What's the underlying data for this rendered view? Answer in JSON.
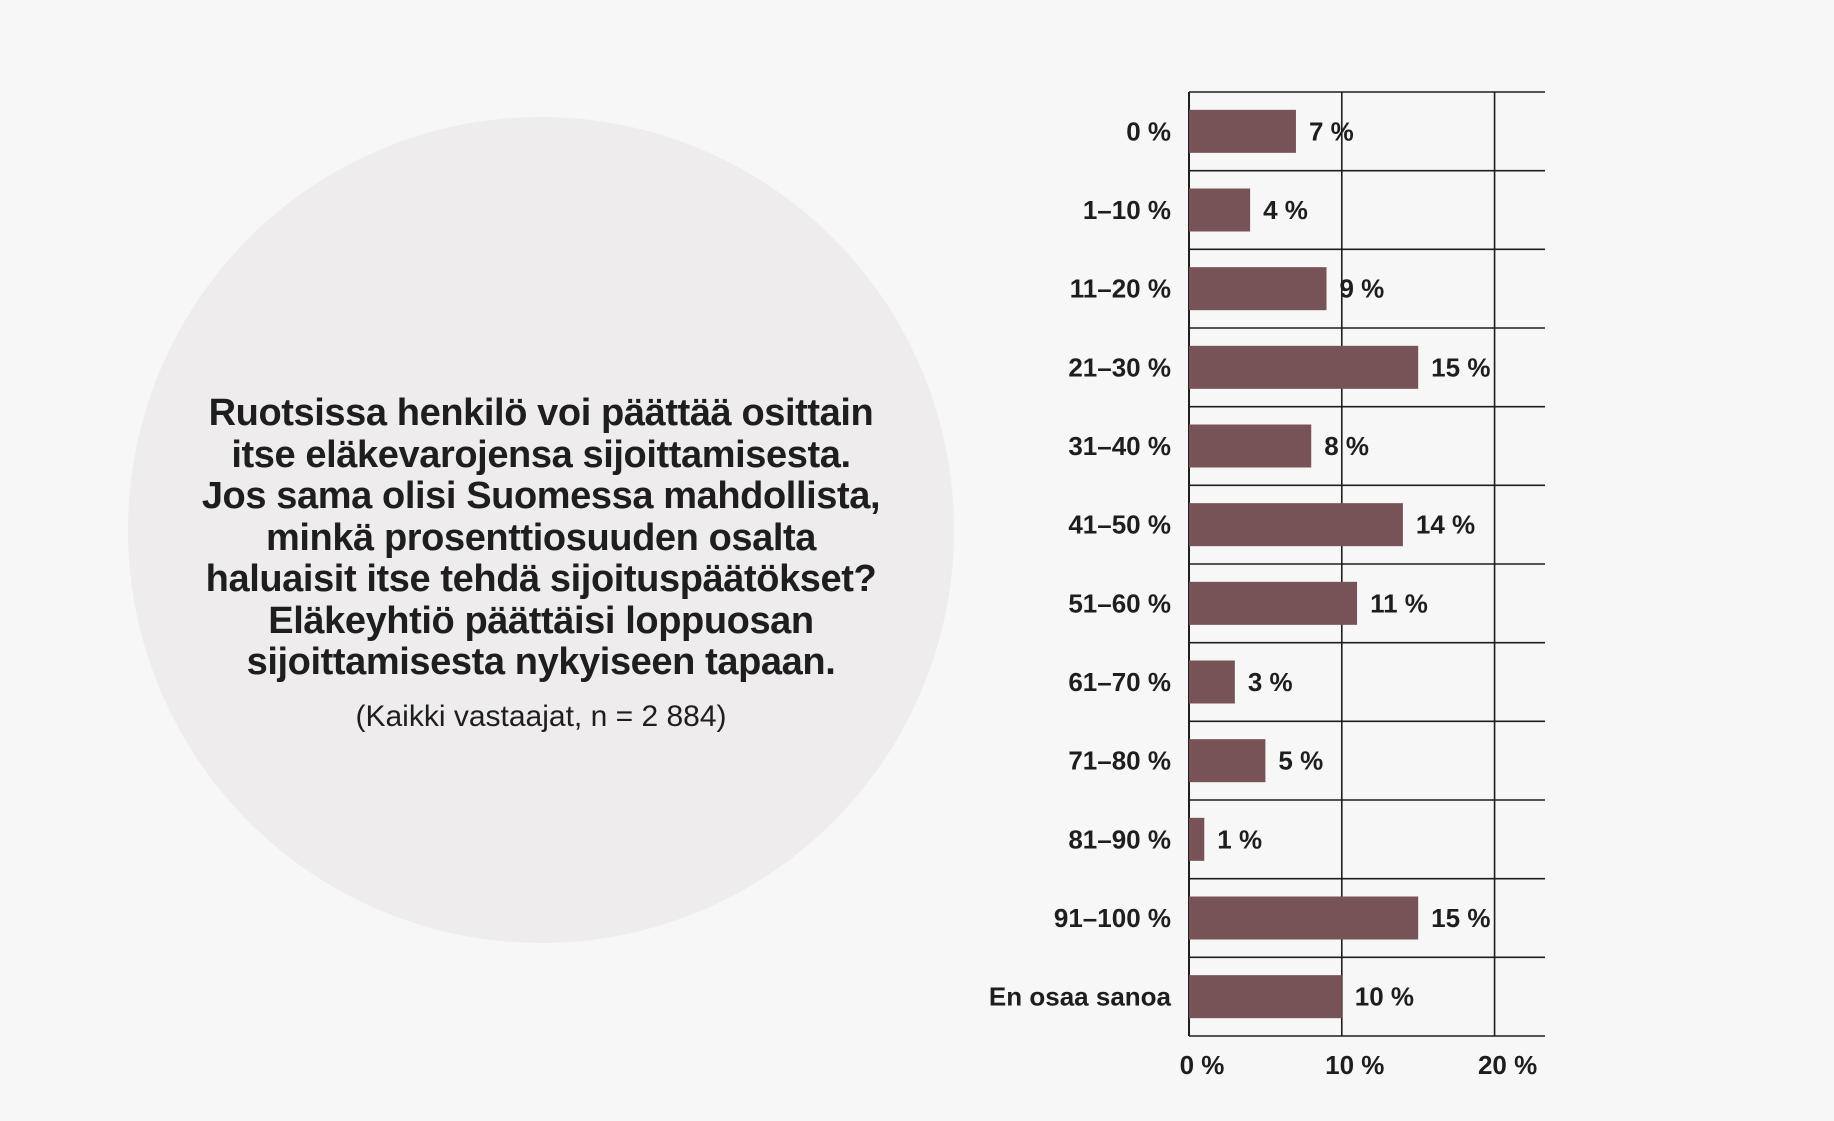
{
  "question_lines": [
    "Ruotsissa henkilö voi päättää osittain",
    "itse eläkevarojensa sijoittamisesta.",
    "Jos sama olisi Suomessa mahdollista,",
    "minkä prosenttiosuuden osalta",
    "haluaisit itse tehdä sijoituspäätökset?",
    "Eläkeyhtiö päättäisi loppuosan",
    "sijoittamisesta nykyiseen tapaan."
  ],
  "note": "(Kaikki vastaajat, n = 2 884)",
  "chart_data": {
    "type": "bar",
    "orientation": "horizontal",
    "categories": [
      "0 %",
      "1–10 %",
      "11–20 %",
      "21–30 %",
      "31–40 %",
      "41–50 %",
      "51–60 %",
      "61–70 %",
      "71–80 %",
      "81–90 %",
      "91–100 %",
      "En osaa sanoa"
    ],
    "values": [
      7,
      4,
      9,
      15,
      8,
      14,
      11,
      3,
      5,
      1,
      15,
      10
    ],
    "value_labels": [
      "7 %",
      "4 %",
      "9 %",
      "15 %",
      "8 %",
      "14 %",
      "11 %",
      "3 %",
      "5 %",
      "1 %",
      "15 %",
      "10 %"
    ],
    "x_ticks": [
      0,
      10,
      20
    ],
    "x_tick_labels": [
      "0 %",
      "10 %",
      "20 %"
    ],
    "xlim": [
      0,
      23.3
    ],
    "grid": true,
    "bar_color": "#775358"
  }
}
